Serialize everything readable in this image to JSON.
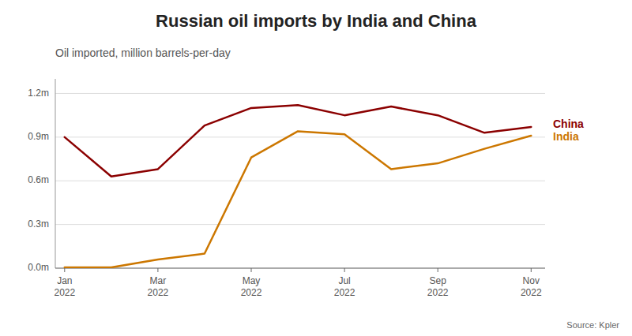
{
  "chart_data": {
    "type": "line",
    "title": "Russian oil imports by India and China",
    "subtitle": "Oil imported, million barrels-per-day",
    "source": "Source: Kpler",
    "categories": [
      "Jan\n2022",
      null,
      "Mar\n2022",
      null,
      "May\n2022",
      null,
      "Jul\n2022",
      null,
      "Sep\n2022",
      null,
      "Nov\n2022"
    ],
    "series": [
      {
        "name": "China",
        "color": "#8B0000",
        "values": [
          0.9,
          0.63,
          0.68,
          0.98,
          1.1,
          1.12,
          1.05,
          1.11,
          1.05,
          0.93,
          0.97
        ]
      },
      {
        "name": "India",
        "color": "#CC7700",
        "values": [
          0.005,
          0.005,
          0.06,
          0.1,
          0.76,
          0.94,
          0.92,
          0.68,
          0.72,
          0.82,
          0.91
        ]
      }
    ],
    "ylim": [
      0,
      1.3
    ],
    "yticks": [
      {
        "value": 0.0,
        "label": "0.0m"
      },
      {
        "value": 0.3,
        "label": "0.3m"
      },
      {
        "value": 0.6,
        "label": "0.6m"
      },
      {
        "value": 0.9,
        "label": "0.9m"
      },
      {
        "value": 1.2,
        "label": "1.2m"
      }
    ],
    "grid": true
  }
}
